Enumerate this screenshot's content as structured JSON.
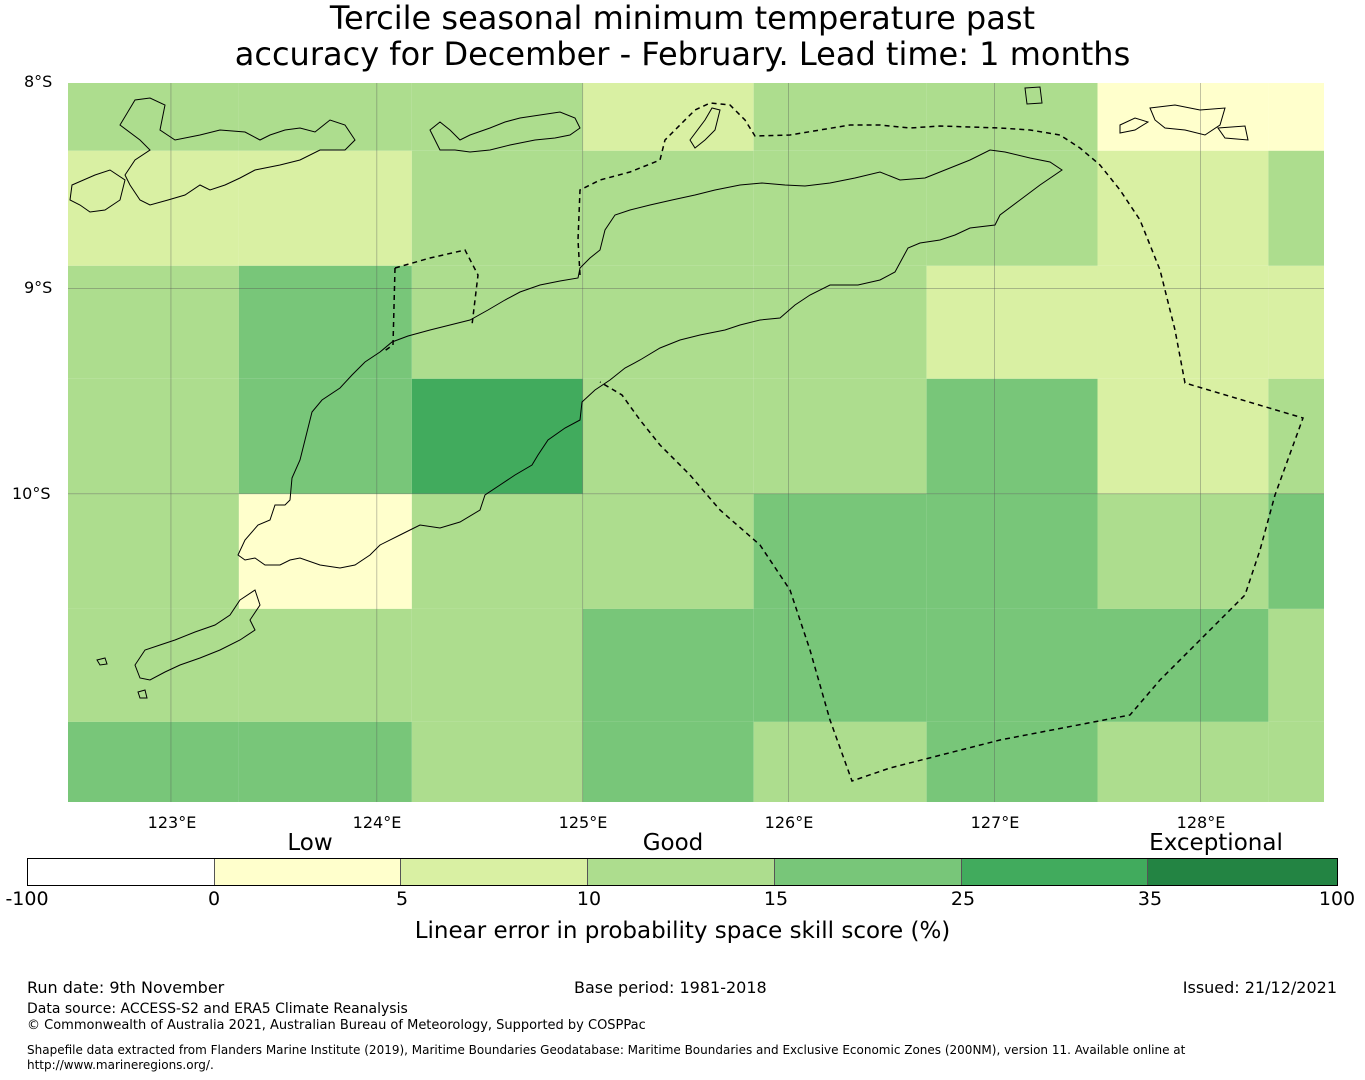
{
  "title": {
    "line1": "Tercile seasonal minimum temperature past",
    "line2": "accuracy for December - February. Lead time: 1 months"
  },
  "map": {
    "lat_labels": [
      "8°S",
      "9°S",
      "10°S"
    ],
    "lon_labels": [
      "123°E",
      "124°E",
      "125°E",
      "126°E",
      "127°E",
      "128°E"
    ],
    "lon_range": [
      122.5,
      128.6
    ],
    "lat_range": [
      -11.5,
      -8.0
    ],
    "cell_grid_lon": [
      122.5,
      123.33,
      124.17,
      125.0,
      125.83,
      126.67,
      127.5,
      128.33,
      128.6
    ],
    "cell_grid_lat": [
      -8.0,
      -8.33,
      -8.89,
      -9.44,
      -10.0,
      -10.56,
      -11.11,
      -11.5
    ],
    "rows_bin_index": [
      [
        3,
        3,
        3,
        2,
        3,
        3,
        1,
        1
      ],
      [
        2,
        2,
        3,
        3,
        3,
        3,
        2,
        3
      ],
      [
        3,
        4,
        3,
        3,
        3,
        2,
        2,
        2
      ],
      [
        3,
        4,
        5,
        3,
        3,
        4,
        2,
        3
      ],
      [
        3,
        1,
        3,
        3,
        4,
        4,
        3,
        4
      ],
      [
        3,
        3,
        3,
        4,
        4,
        4,
        4,
        3
      ],
      [
        4,
        4,
        3,
        4,
        3,
        4,
        3,
        3
      ]
    ]
  },
  "colorbar": {
    "categories": [
      "Low",
      "Good",
      "Exceptional"
    ],
    "ticks": [
      "-100",
      "0",
      "5",
      "10",
      "15",
      "25",
      "35",
      "100"
    ],
    "bin_colors": [
      "#ffffff",
      "#ffffcc",
      "#d9f0a3",
      "#addd8e",
      "#78c679",
      "#41ab5d",
      "#238443"
    ],
    "label": "Linear error in probability space skill score (%)"
  },
  "footer": {
    "run_date": "Run date: 9th November",
    "base_period": "Base period: 1981-2018",
    "issued": "Issued: 21/12/2021",
    "data_source": "Data source: ACCESS-S2 and ERA5 Climate Reanalysis",
    "copyright": "© Commonwealth of Australia 2021, Australian Bureau of Meteorology, Supported by COSPPac",
    "shapefile_line1": "Shapefile data extracted from Flanders Marine Institute (2019), Maritime Boundaries Geodatabase: Maritime Boundaries and Exclusive Economic Zones (200NM), version 11. Available online at",
    "shapefile_line2": "http://www.marineregions.org/."
  }
}
